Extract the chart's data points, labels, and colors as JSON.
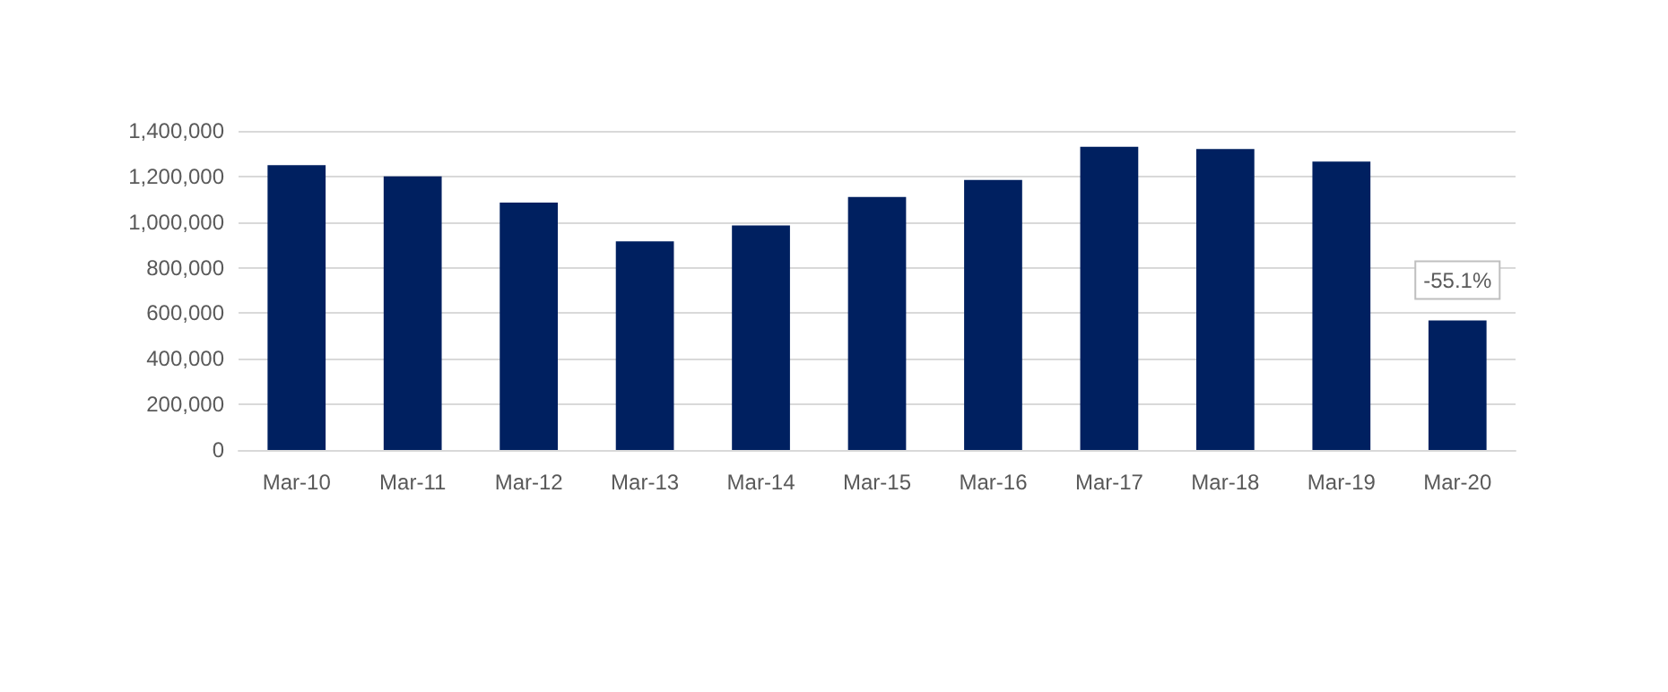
{
  "chart_data": {
    "type": "bar",
    "categories": [
      "Mar-10",
      "Mar-11",
      "Mar-12",
      "Mar-13",
      "Mar-14",
      "Mar-15",
      "Mar-16",
      "Mar-17",
      "Mar-18",
      "Mar-19",
      "Mar-20"
    ],
    "values": [
      1250000,
      1200000,
      1085000,
      915000,
      985000,
      1110000,
      1185000,
      1330000,
      1320000,
      1265000,
      568000
    ],
    "color": "#002060",
    "ylim": [
      0,
      1400000
    ],
    "yticks": [
      0,
      {
        "value": 200000,
        "label": "200,000"
      },
      {
        "value": 400000,
        "label": "400,000"
      },
      {
        "value": 600000,
        "label": "600,000"
      },
      {
        "value": 800000,
        "label": "800,000"
      },
      {
        "value": 1000000,
        "label": "1,000,000"
      },
      {
        "value": 1200000,
        "label": "1,200,000"
      },
      {
        "value": 1400000,
        "label": "1,400,000"
      }
    ],
    "grid": "y",
    "annotations": [
      {
        "text": "-55.1%",
        "x": "Mar-20",
        "y": 568000
      }
    ]
  }
}
